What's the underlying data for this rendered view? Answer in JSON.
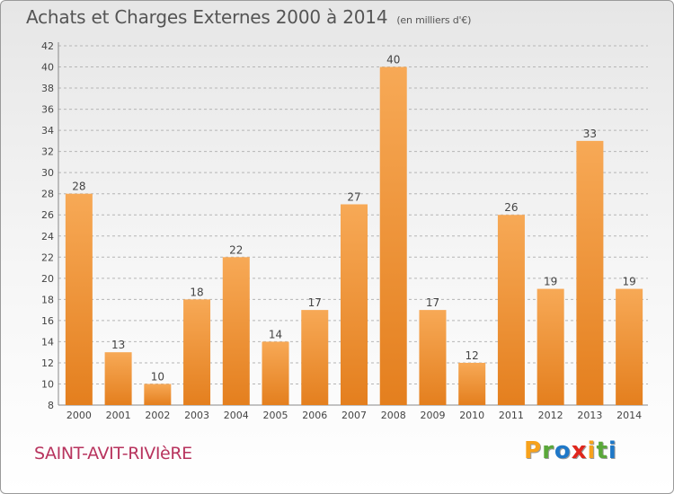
{
  "header": {
    "title": "Achats et Charges Externes 2000 à 2014",
    "subtitle": "(en milliers d'€)"
  },
  "footer": {
    "commune": "SAINT-AVIT-RIVIèRE",
    "logo_letters": [
      "P",
      "r",
      "o",
      "x",
      "i",
      "t",
      "i"
    ],
    "logo_colors": [
      "#f7a21c",
      "#5aa83a",
      "#1f78c8",
      "#e0261c",
      "#f7a21c",
      "#5aa83a",
      "#1f78c8"
    ]
  },
  "chart_data": {
    "type": "bar",
    "title": "Achats et Charges Externes 2000 à 2014",
    "subtitle": "(en milliers d'€)",
    "categories": [
      "2000",
      "2001",
      "2002",
      "2003",
      "2004",
      "2005",
      "2006",
      "2007",
      "2008",
      "2009",
      "2010",
      "2011",
      "2012",
      "2013",
      "2014"
    ],
    "values": [
      28,
      13,
      10,
      18,
      22,
      14,
      17,
      27,
      40,
      17,
      12,
      26,
      19,
      33,
      19
    ],
    "ylim": [
      8,
      42
    ],
    "yticks": [
      8,
      10,
      12,
      14,
      16,
      18,
      20,
      22,
      24,
      26,
      28,
      30,
      32,
      34,
      36,
      38,
      40,
      42
    ],
    "grid": true,
    "bar_color": "#f0993f"
  }
}
